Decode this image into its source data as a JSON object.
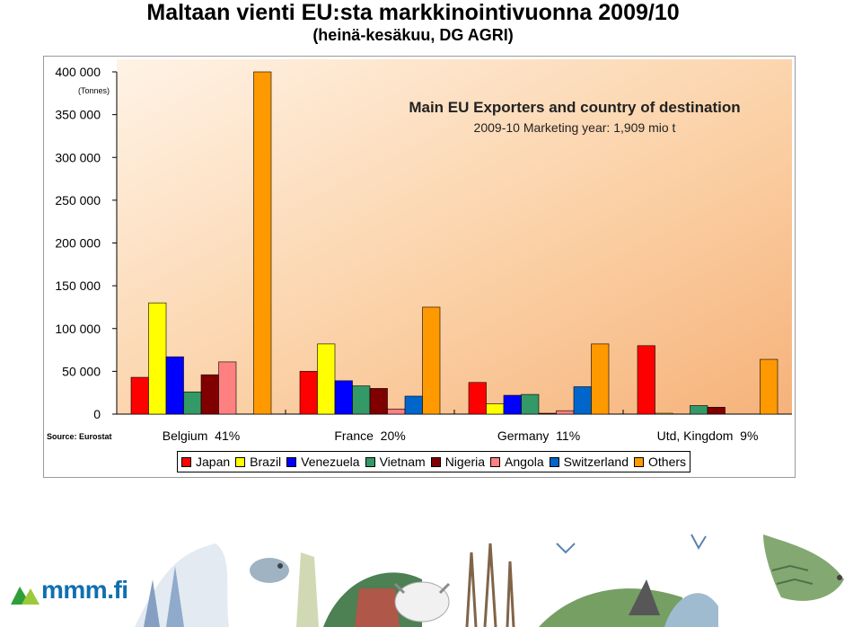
{
  "page": {
    "title": "Maltaan vienti EU:sta markkinointivuonna 2009/10",
    "subtitle": "(heinä-kesäkuu, DG AGRI)"
  },
  "logo": {
    "text": "mmm.fi"
  },
  "chart_data": {
    "type": "bar",
    "title": "Main EU Exporters and country of destination",
    "subtitle": "2009-10 Marketing year: 1,909 mio t",
    "unit_label": "(Tonnes)",
    "source": "Source: Eurostat",
    "ylim": [
      0,
      400000
    ],
    "yticks": [
      0,
      50000,
      100000,
      150000,
      200000,
      250000,
      300000,
      350000,
      400000
    ],
    "ytick_labels": [
      "0",
      "50 000",
      "100 000",
      "150 000",
      "200 000",
      "250 000",
      "300 000",
      "350 000",
      "400 000"
    ],
    "categories": [
      "Belgium  41%",
      "France  20%",
      "Germany  11%",
      "Utd, Kingdom  9%"
    ],
    "grid": false,
    "legend_position": "bottom",
    "series": [
      {
        "name": "Japan",
        "color": "#ff0000",
        "values": [
          43000,
          50000,
          37000,
          80000
        ]
      },
      {
        "name": "Brazil",
        "color": "#ffff00",
        "values": [
          130000,
          82000,
          12000,
          1000
        ]
      },
      {
        "name": "Venezuela",
        "color": "#0000ff",
        "values": [
          67000,
          39000,
          22000,
          0
        ]
      },
      {
        "name": "Vietnam",
        "color": "#339966",
        "values": [
          26000,
          33000,
          23000,
          10000
        ]
      },
      {
        "name": "Nigeria",
        "color": "#800000",
        "values": [
          46000,
          30000,
          1000,
          8000
        ]
      },
      {
        "name": "Angola",
        "color": "#ff8080",
        "values": [
          61000,
          6000,
          4000,
          0
        ]
      },
      {
        "name": "Switzerland",
        "color": "#0066cc",
        "values": [
          0,
          21000,
          32000,
          0
        ]
      },
      {
        "name": "Others",
        "color": "#ff9900",
        "values": [
          400000,
          125000,
          82000,
          64000
        ]
      }
    ]
  }
}
